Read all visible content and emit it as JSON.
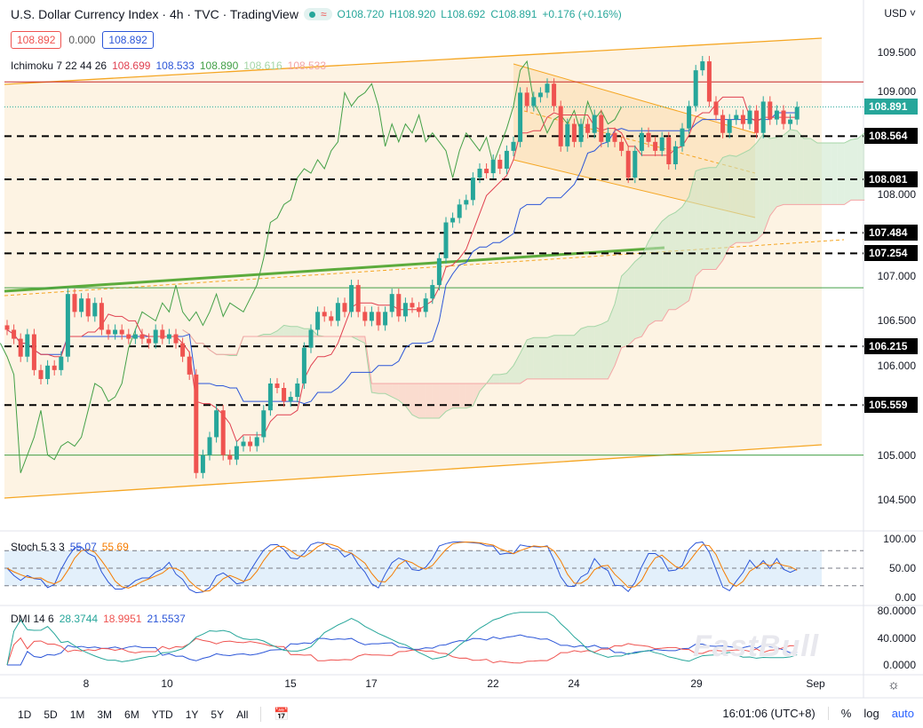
{
  "header": {
    "title": "U.S. Dollar Currency Index · 4h · TVC · TradingView",
    "open": "O108.720",
    "high": "H108.920",
    "low": "L108.692",
    "close": "C108.891",
    "change": "+0.176 (+0.16%)",
    "market_icon": "wave-icon"
  },
  "price_boxes": {
    "bid": "108.892",
    "spread": "0.000",
    "ask": "108.892"
  },
  "ichimoku": {
    "label": "Ichimoku 7 22 44 26",
    "v1": "108.699",
    "v2": "108.533",
    "v3": "108.890",
    "v4": "108.616",
    "v5": "108.533"
  },
  "stoch": {
    "label": "Stoch 5 3 3",
    "k": "55.07",
    "d": "55.69",
    "ticks": [
      "100.00",
      "50.00",
      "0.00"
    ]
  },
  "dmi": {
    "label": "DMI 14 6",
    "adx": "28.3744",
    "minus": "18.9951",
    "plus": "21.5537",
    "ticks": [
      "80.0000",
      "40.0000",
      "0.0000"
    ]
  },
  "price_axis": {
    "currency": "USD",
    "ticks": [
      "109.500",
      "109.000",
      "108.000",
      "107.000",
      "106.500",
      "106.000",
      "105.000",
      "104.500"
    ],
    "last": "108.891",
    "levels": [
      "108.564",
      "108.081",
      "107.484",
      "107.254",
      "106.215",
      "105.559"
    ]
  },
  "time_axis": [
    "8",
    "10",
    "15",
    "17",
    "22",
    "24",
    "29",
    "Sep"
  ],
  "bottom_bar": {
    "ranges": [
      "1D",
      "5D",
      "1M",
      "3M",
      "6M",
      "YTD",
      "1Y",
      "5Y",
      "All"
    ],
    "time": "16:01:06 (UTC+8)",
    "percent": "%",
    "log": "log",
    "auto": "auto"
  },
  "watermark": "FastBull",
  "colors": {
    "up": "#26a69a",
    "down": "#ef5350",
    "tenkan": "#e04050",
    "kijun": "#2c56d8",
    "chikou": "#43a047",
    "channel": "#f5a623",
    "level": "#000000"
  },
  "chart_data": {
    "type": "candlestick",
    "closes": [
      106.4,
      106.3,
      106.1,
      106.35,
      105.95,
      105.85,
      106.0,
      105.95,
      106.1,
      106.8,
      106.6,
      106.75,
      106.55,
      106.7,
      106.4,
      106.35,
      106.4,
      106.35,
      106.3,
      106.35,
      106.3,
      106.25,
      106.4,
      106.3,
      106.35,
      106.25,
      106.1,
      105.9,
      104.8,
      105.0,
      105.2,
      105.5,
      105.0,
      104.95,
      105.1,
      105.15,
      105.1,
      105.2,
      105.5,
      105.8,
      105.75,
      105.6,
      105.65,
      105.8,
      106.2,
      106.4,
      106.6,
      106.55,
      106.5,
      106.7,
      106.6,
      106.9,
      106.6,
      106.5,
      106.6,
      106.45,
      106.6,
      106.8,
      106.55,
      106.7,
      106.65,
      106.6,
      106.75,
      106.9,
      107.2,
      107.6,
      107.65,
      107.8,
      107.85,
      108.1,
      108.2,
      108.15,
      108.3,
      108.2,
      108.4,
      108.5,
      109.05,
      108.9,
      109.0,
      109.05,
      109.15,
      108.9,
      108.45,
      108.7,
      108.5,
      108.7,
      108.6,
      108.8,
      108.5,
      108.6,
      108.5,
      108.4,
      108.1,
      108.4,
      108.6,
      108.5,
      108.4,
      108.55,
      108.25,
      108.45,
      108.65,
      108.9,
      109.3,
      109.4,
      108.95,
      108.8,
      108.6,
      108.75,
      108.8,
      108.7,
      108.85,
      108.6,
      108.95,
      108.75,
      108.85,
      108.7,
      108.75,
      108.89
    ],
    "red_line": 109.17,
    "green_lines": [
      106.87,
      105.0
    ]
  }
}
